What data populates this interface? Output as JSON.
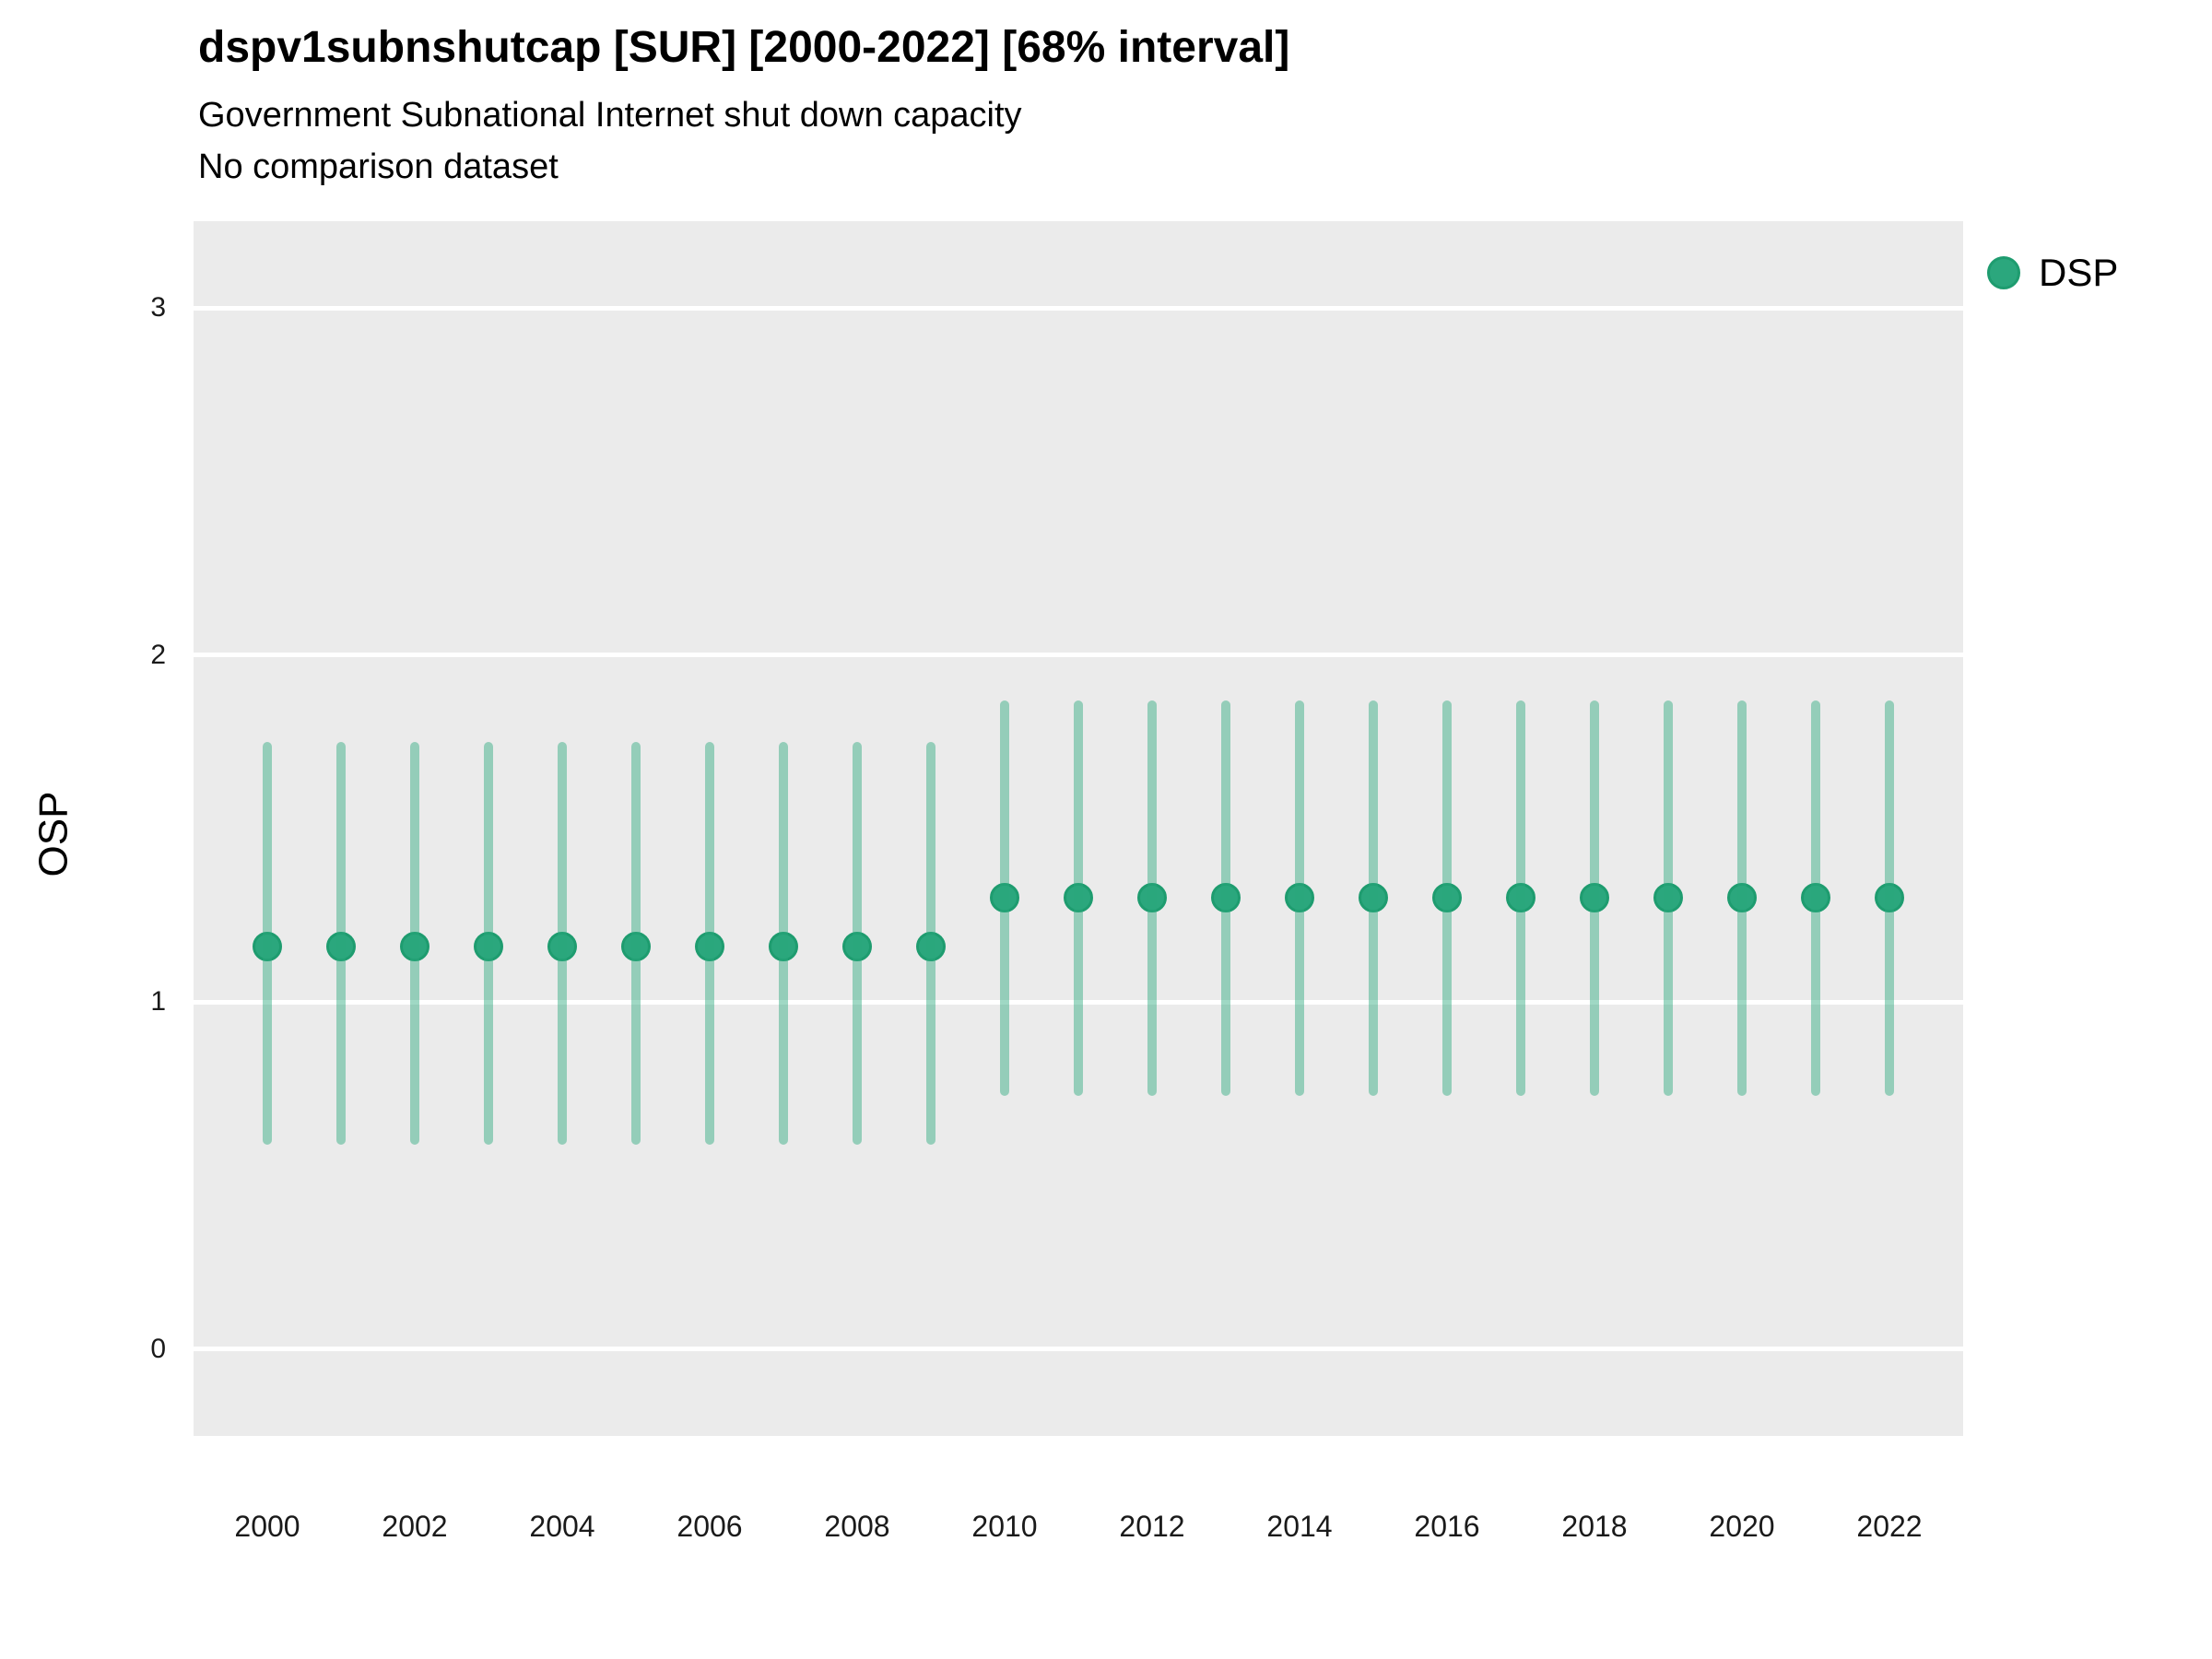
{
  "header": {
    "title": "dspv1subnshutcap [SUR] [2000-2022] [68% interval]",
    "subtitle": "Government Subnational Internet shut down capacity",
    "note": "No comparison dataset"
  },
  "y_axis": {
    "label": "OSP",
    "ticks": [
      "0",
      "1",
      "2",
      "3"
    ],
    "range": [
      -0.25,
      3.25
    ]
  },
  "x_axis": {
    "ticks": [
      "2000",
      "2002",
      "2004",
      "2006",
      "2008",
      "2010",
      "2012",
      "2014",
      "2016",
      "2018",
      "2020",
      "2022"
    ],
    "range": [
      1999,
      2023
    ]
  },
  "legend": {
    "position": "right",
    "items": [
      {
        "label": "DSP",
        "color": "#2BA77D"
      }
    ]
  },
  "colors": {
    "panel_bg": "#EBEBEB",
    "gridline": "#FFFFFF",
    "interval_bar": "rgba(42,168,124,0.45)",
    "point_fill": "#2BA77D",
    "point_stroke": "#1E9C6F",
    "text": "#000000"
  },
  "chart_data": {
    "type": "pointrange",
    "title": "dspv1subnshutcap [SUR] [2000-2022] [68% interval]",
    "subtitle": "Government Subnational Internet shut down capacity",
    "note": "No comparison dataset",
    "interval": "68%",
    "xlabel": "",
    "ylabel": "OSP",
    "ylim": [
      -0.25,
      3.25
    ],
    "xlim": [
      1999,
      2023
    ],
    "grid": "major-horizontal-white-on-gray",
    "legend_position": "right",
    "series": [
      {
        "name": "DSP",
        "points": [
          {
            "year": 2000,
            "estimate": 1.16,
            "lower": 0.59,
            "upper": 1.75
          },
          {
            "year": 2001,
            "estimate": 1.16,
            "lower": 0.59,
            "upper": 1.75
          },
          {
            "year": 2002,
            "estimate": 1.16,
            "lower": 0.59,
            "upper": 1.75
          },
          {
            "year": 2003,
            "estimate": 1.16,
            "lower": 0.59,
            "upper": 1.75
          },
          {
            "year": 2004,
            "estimate": 1.16,
            "lower": 0.59,
            "upper": 1.75
          },
          {
            "year": 2005,
            "estimate": 1.16,
            "lower": 0.59,
            "upper": 1.75
          },
          {
            "year": 2006,
            "estimate": 1.16,
            "lower": 0.59,
            "upper": 1.75
          },
          {
            "year": 2007,
            "estimate": 1.16,
            "lower": 0.59,
            "upper": 1.75
          },
          {
            "year": 2008,
            "estimate": 1.16,
            "lower": 0.59,
            "upper": 1.75
          },
          {
            "year": 2009,
            "estimate": 1.16,
            "lower": 0.59,
            "upper": 1.75
          },
          {
            "year": 2010,
            "estimate": 1.3,
            "lower": 0.73,
            "upper": 1.87
          },
          {
            "year": 2011,
            "estimate": 1.3,
            "lower": 0.73,
            "upper": 1.87
          },
          {
            "year": 2012,
            "estimate": 1.3,
            "lower": 0.73,
            "upper": 1.87
          },
          {
            "year": 2013,
            "estimate": 1.3,
            "lower": 0.73,
            "upper": 1.87
          },
          {
            "year": 2014,
            "estimate": 1.3,
            "lower": 0.73,
            "upper": 1.87
          },
          {
            "year": 2015,
            "estimate": 1.3,
            "lower": 0.73,
            "upper": 1.87
          },
          {
            "year": 2016,
            "estimate": 1.3,
            "lower": 0.73,
            "upper": 1.87
          },
          {
            "year": 2017,
            "estimate": 1.3,
            "lower": 0.73,
            "upper": 1.87
          },
          {
            "year": 2018,
            "estimate": 1.3,
            "lower": 0.73,
            "upper": 1.87
          },
          {
            "year": 2019,
            "estimate": 1.3,
            "lower": 0.73,
            "upper": 1.87
          },
          {
            "year": 2020,
            "estimate": 1.3,
            "lower": 0.73,
            "upper": 1.87
          },
          {
            "year": 2021,
            "estimate": 1.3,
            "lower": 0.73,
            "upper": 1.87
          },
          {
            "year": 2022,
            "estimate": 1.3,
            "lower": 0.73,
            "upper": 1.87
          }
        ]
      }
    ]
  }
}
